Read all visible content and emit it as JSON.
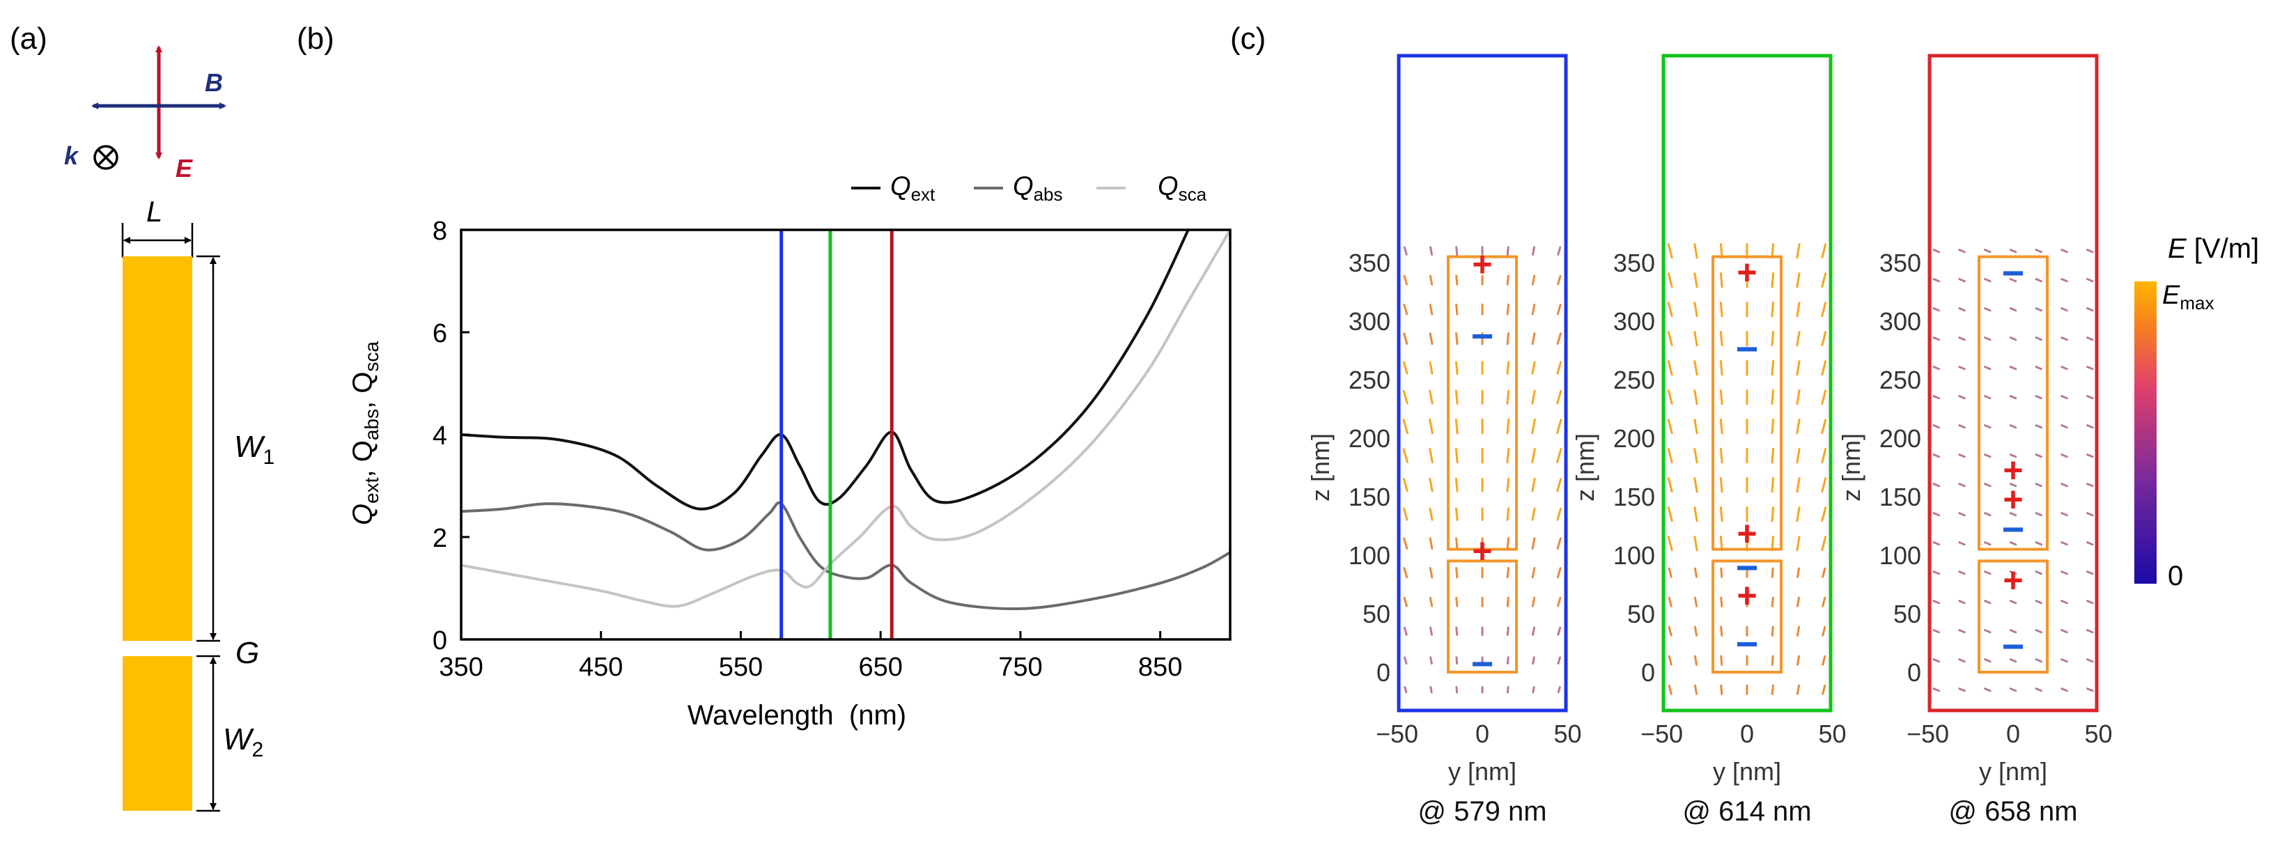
{
  "panel_a": {
    "label": "(a)",
    "field_labels": {
      "B": "B",
      "E": "E",
      "k": "k"
    },
    "dims": {
      "L": "L",
      "W1": "W",
      "W1_sub": "1",
      "G": "G",
      "W2": "W",
      "W2_sub": "2"
    },
    "colors": {
      "gold": "#FFBE00",
      "E_arrow": "#C0102A",
      "B_arrow": "#1F2F7A"
    }
  },
  "panel_b": {
    "label": "(b)",
    "legend": [
      {
        "sym": "Q",
        "sub": "ext",
        "color": "#111111"
      },
      {
        "sym": "Q",
        "sub": "abs",
        "color": "#6B6B6B"
      },
      {
        "sym": "Q",
        "sub": "sca",
        "color": "#C4C4C4"
      }
    ],
    "markers": [
      {
        "x": 579,
        "color": "#1D35E6"
      },
      {
        "x": 614,
        "color": "#12C21A"
      },
      {
        "x": 658,
        "color": "#B8141C"
      }
    ]
  },
  "chart_data": {
    "type": "line",
    "xlabel": "Wavelength  (nm)",
    "ylabel_parts": [
      "Q",
      "ext",
      ", Q",
      "abs",
      ", Q",
      "sca"
    ],
    "xlim": [
      350,
      900
    ],
    "ylim": [
      0,
      8
    ],
    "xticks": [
      350,
      450,
      550,
      650,
      750,
      850
    ],
    "yticks": [
      0,
      2,
      4,
      6,
      8
    ],
    "series": [
      {
        "name": "Q_ext",
        "color": "#111111",
        "points": [
          [
            350,
            4.0
          ],
          [
            380,
            3.95
          ],
          [
            420,
            3.9
          ],
          [
            460,
            3.6
          ],
          [
            490,
            3.0
          ],
          [
            520,
            2.55
          ],
          [
            545,
            2.85
          ],
          [
            565,
            3.6
          ],
          [
            579,
            4.0
          ],
          [
            592,
            3.4
          ],
          [
            606,
            2.7
          ],
          [
            620,
            2.75
          ],
          [
            640,
            3.4
          ],
          [
            658,
            4.05
          ],
          [
            672,
            3.3
          ],
          [
            690,
            2.7
          ],
          [
            720,
            2.85
          ],
          [
            760,
            3.5
          ],
          [
            800,
            4.6
          ],
          [
            840,
            6.3
          ],
          [
            870,
            8.0
          ]
        ]
      },
      {
        "name": "Q_abs",
        "color": "#6B6B6B",
        "points": [
          [
            350,
            2.5
          ],
          [
            380,
            2.55
          ],
          [
            410,
            2.65
          ],
          [
            440,
            2.6
          ],
          [
            470,
            2.45
          ],
          [
            500,
            2.1
          ],
          [
            525,
            1.75
          ],
          [
            550,
            1.95
          ],
          [
            570,
            2.45
          ],
          [
            579,
            2.65
          ],
          [
            592,
            2.0
          ],
          [
            606,
            1.45
          ],
          [
            620,
            1.25
          ],
          [
            640,
            1.2
          ],
          [
            658,
            1.45
          ],
          [
            672,
            1.1
          ],
          [
            700,
            0.72
          ],
          [
            750,
            0.6
          ],
          [
            800,
            0.78
          ],
          [
            850,
            1.1
          ],
          [
            880,
            1.4
          ],
          [
            900,
            1.7
          ]
        ]
      },
      {
        "name": "Q_sca",
        "color": "#C4C4C4",
        "points": [
          [
            350,
            1.45
          ],
          [
            400,
            1.2
          ],
          [
            450,
            0.95
          ],
          [
            480,
            0.75
          ],
          [
            505,
            0.65
          ],
          [
            530,
            0.9
          ],
          [
            560,
            1.25
          ],
          [
            579,
            1.35
          ],
          [
            590,
            1.1
          ],
          [
            600,
            1.05
          ],
          [
            615,
            1.5
          ],
          [
            635,
            2.0
          ],
          [
            658,
            2.6
          ],
          [
            672,
            2.2
          ],
          [
            690,
            1.95
          ],
          [
            720,
            2.1
          ],
          [
            760,
            2.8
          ],
          [
            800,
            3.8
          ],
          [
            840,
            5.2
          ],
          [
            870,
            6.6
          ],
          [
            900,
            8.0
          ]
        ]
      }
    ]
  },
  "panel_c": {
    "label": "(c)",
    "colorbar": {
      "title_sym": "E",
      "title_unit": " [V/m]",
      "max_sym": "E",
      "max_sub": "max",
      "min": "0"
    },
    "x_ticks": [
      "−50",
      "0",
      "50"
    ],
    "y_ticks": [
      "0",
      "50",
      "100",
      "150",
      "200",
      "250",
      "300",
      "350"
    ],
    "x_label": "y [nm]",
    "y_label": "z [nm]",
    "plots": [
      {
        "caption": "@ 579 nm",
        "frame_color": "#1D35E6",
        "charges": [
          {
            "sign": "+",
            "z": 348
          },
          {
            "sign": "−",
            "z": 283
          },
          {
            "sign": "+",
            "z": 103
          },
          {
            "sign": "−",
            "z": 3
          }
        ]
      },
      {
        "caption": "@ 614 nm",
        "frame_color": "#12C21A",
        "charges": [
          {
            "sign": "+",
            "z": 341
          },
          {
            "sign": "−",
            "z": 272
          },
          {
            "sign": "+",
            "z": 118
          },
          {
            "sign": "−",
            "z": 85
          },
          {
            "sign": "+",
            "z": 65
          },
          {
            "sign": "−",
            "z": 20
          }
        ]
      },
      {
        "caption": "@ 658 nm",
        "frame_color": "#D8252B",
        "charges": [
          {
            "sign": "−",
            "z": 337
          },
          {
            "sign": "+",
            "z": 172
          },
          {
            "sign": "+",
            "z": 147
          },
          {
            "sign": "−",
            "z": 118
          },
          {
            "sign": "+",
            "z": 78
          },
          {
            "sign": "−",
            "z": 18
          }
        ]
      }
    ]
  }
}
